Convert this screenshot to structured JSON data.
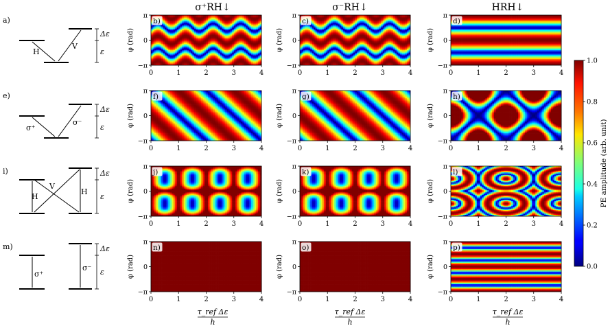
{
  "columns": [
    {
      "title": "σ⁺RH↓"
    },
    {
      "title": "σ⁻RH↓"
    },
    {
      "title": "HRH↓"
    }
  ],
  "rows": [
    {
      "label": "a)",
      "panels": [
        "b)",
        "c)",
        "d)"
      ],
      "types": [
        "s1",
        "s1",
        "d"
      ]
    },
    {
      "label": "e)",
      "panels": [
        "f)",
        "g)",
        "h)"
      ],
      "types": [
        "diag",
        "diag",
        "lattice"
      ]
    },
    {
      "label": "i)",
      "panels": [
        "j)",
        "k)",
        "l)"
      ],
      "types": [
        "dots",
        "dots",
        "rings"
      ]
    },
    {
      "label": "m)",
      "panels": [
        "n)",
        "o)",
        "p)"
      ],
      "types": [
        "solid",
        "solid",
        "stripes"
      ]
    }
  ],
  "axes": {
    "ylabel": "φ (rad)",
    "yticks": [
      "π",
      "0",
      "−π"
    ],
    "xticks": [
      "0",
      "1",
      "2",
      "3",
      "4"
    ],
    "xlabel_num": "τ_ref Δε",
    "xlabel_den": "h"
  },
  "colorbar": {
    "label": "PE amplitude (arb. unit)",
    "ticks": [
      "1.0",
      "0.8",
      "0.6",
      "0.4",
      "0.2",
      "0.0"
    ],
    "colormap": "jet"
  },
  "schemes": {
    "delta": "Δε",
    "eps": "ε",
    "H": "H",
    "V": "V",
    "sp": "σ⁺",
    "sm": "σ⁻"
  }
}
